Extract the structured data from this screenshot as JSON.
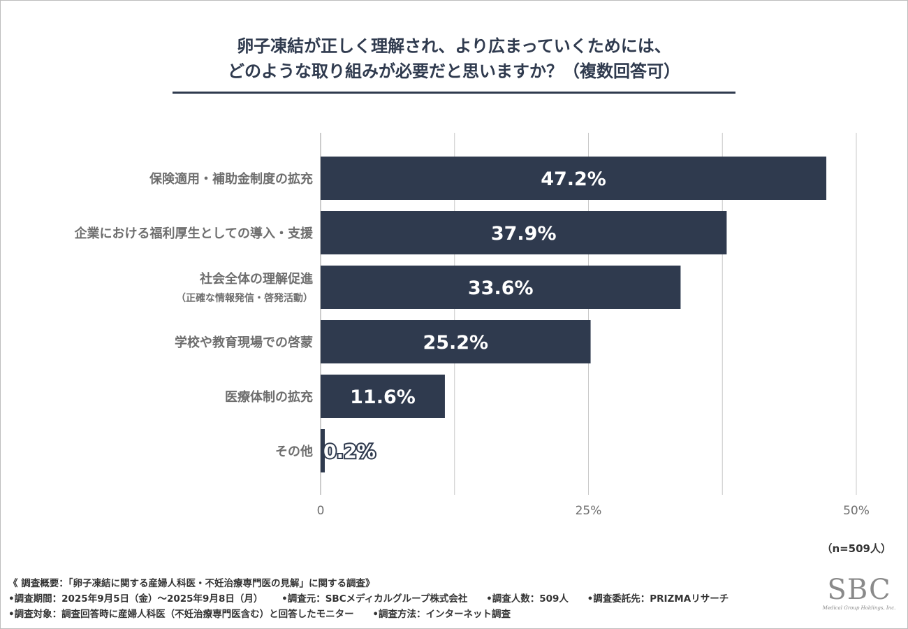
{
  "title": {
    "line1": "卵子凍結が正しく理解され、より広まっていくためには、",
    "line2": "どのような取り組みが必要だと思いますか？（複数回答可）"
  },
  "chart_data": {
    "type": "bar",
    "orientation": "horizontal",
    "categories": [
      "保険適用・補助金制度の拡充",
      "企業における福利厚生としての導入・支援",
      "社会全体の理解促進",
      "学校や教育現場での啓蒙",
      "医療体制の拡充",
      "その他"
    ],
    "category_sublabels": [
      "",
      "",
      "（正確な情報発信・啓発活動）",
      "",
      "",
      ""
    ],
    "values": [
      47.2,
      37.9,
      33.6,
      25.2,
      11.6,
      0.2
    ],
    "value_labels": [
      "47.2%",
      "37.9%",
      "33.6%",
      "25.2%",
      "11.6%",
      "0.2%"
    ],
    "xlim": [
      0,
      50
    ],
    "ticks": [
      0,
      25,
      50
    ],
    "tick_labels": [
      "0",
      "25%",
      "50%"
    ],
    "grid": true,
    "bar_color": "#2f3a4e"
  },
  "sample_note": "（n=509人）",
  "notes": {
    "summary": "《 調査概要：「卵子凍結に関する産婦人科医・不妊治療専門医の見解」に関する調査》",
    "period": "•調査期間：2025年9月5日（金）～2025年9月8日（月）",
    "organizer": "•調査元：SBCメディカルグループ株式会社",
    "respondents": "•調査人数：509人",
    "contractor": "•調査委託先：PRIZMAリサーチ",
    "target": "•調査対象：調査回答時に産婦人科医（不妊治療専門医含む）と回答したモニター",
    "method": "•調査方法：インターネット調査"
  },
  "logo": {
    "mark": "SBC",
    "subtitle": "Medical Group Holdings, Inc."
  }
}
